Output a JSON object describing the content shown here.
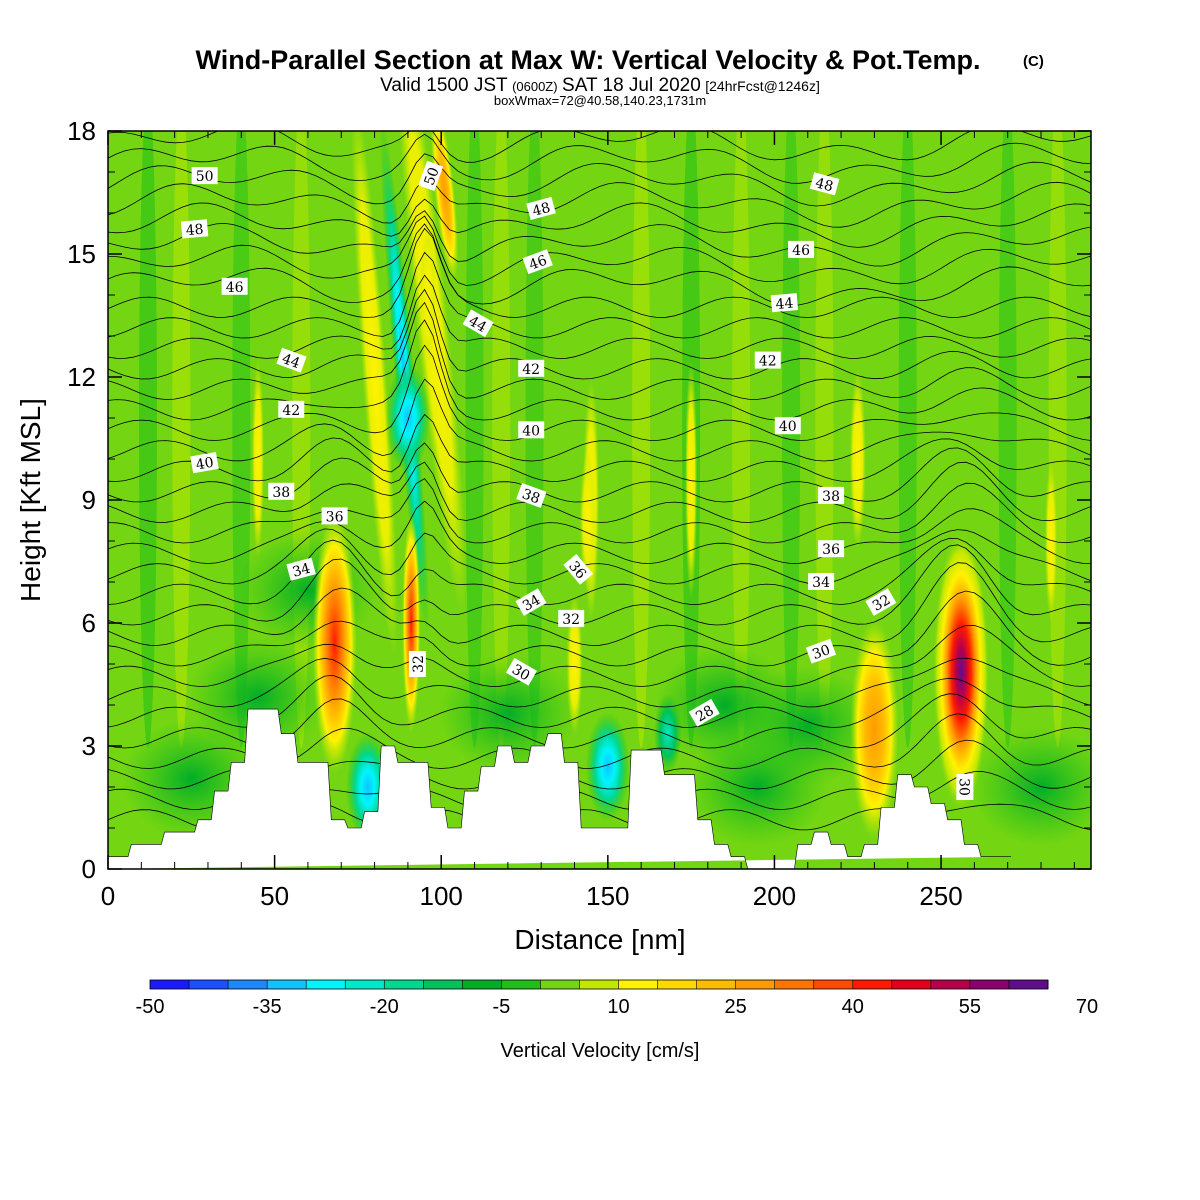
{
  "chart_data": {
    "type": "heatmap",
    "title": "Wind-Parallel Section at Max W: Vertical Velocity & Pot.Temp.",
    "title_mark": "(C)",
    "subtitle_a": "Valid 1500 JST",
    "subtitle_b": "(0600Z)",
    "subtitle_c": "SAT 18 Jul 2020",
    "subtitle_d": "[24hrFcst@1246z]",
    "subtitle2": "boxWmax=72@40.58,140.23,1731m",
    "xlabel": "Distance [nm]",
    "ylabel": "Height [Kft MSL]",
    "xlim": [
      0,
      295
    ],
    "ylim": [
      0,
      18
    ],
    "x_ticks": [
      "0",
      "50",
      "100",
      "150",
      "200",
      "250"
    ],
    "y_ticks": [
      "0",
      "3",
      "6",
      "9",
      "12",
      "15",
      "18"
    ],
    "colorbar": {
      "label": "Vertical Velocity [cm/s]",
      "ticks": [
        "-50",
        "-35",
        "-20",
        "-5",
        "10",
        "25",
        "40",
        "55",
        "70"
      ],
      "colors": [
        "#1a1aff",
        "#1c4fff",
        "#1c88ff",
        "#10c2ff",
        "#00f5ff",
        "#00e8c9",
        "#00d890",
        "#00c25a",
        "#00ad28",
        "#1fbf18",
        "#74d612",
        "#c2e800",
        "#fff200",
        "#ffd800",
        "#ffbb00",
        "#ff9a00",
        "#ff7500",
        "#ff4a00",
        "#ff1a00",
        "#e3001a",
        "#b8004a",
        "#8c006e",
        "#5e0d8c"
      ]
    },
    "contour_labels": [
      "50",
      "48",
      "46",
      "44",
      "42",
      "40",
      "38",
      "36",
      "34",
      "32",
      "30",
      "28"
    ],
    "terrain": {
      "x": [
        0,
        6,
        7,
        16,
        17,
        26,
        27,
        31,
        32,
        36,
        37,
        41,
        42,
        51,
        52,
        56,
        57,
        66,
        67,
        71,
        72,
        76,
        77,
        81,
        82,
        86,
        87,
        96,
        97,
        101,
        102,
        106,
        107,
        111,
        112,
        116,
        117,
        121,
        122,
        126,
        127,
        131,
        132,
        136,
        137,
        141,
        142,
        146,
        147,
        156,
        157,
        166,
        167,
        176,
        177,
        181,
        182,
        186,
        187,
        191,
        192,
        196,
        197,
        206,
        207,
        211,
        212,
        216,
        217,
        221,
        222,
        226,
        227,
        231,
        232,
        236,
        237,
        241,
        242,
        246,
        247,
        251,
        252,
        256,
        257,
        261,
        262,
        266,
        267,
        271,
        272,
        295
      ],
      "y": [
        0.3,
        0.3,
        0.6,
        0.6,
        0.9,
        0.9,
        1.2,
        1.2,
        1.9,
        1.9,
        2.6,
        2.6,
        3.9,
        3.9,
        3.3,
        3.3,
        2.6,
        2.6,
        1.2,
        1.2,
        1.0,
        1.0,
        1.4,
        1.4,
        3.0,
        3.0,
        2.6,
        2.6,
        1.5,
        1.5,
        1.0,
        1.0,
        1.9,
        1.9,
        2.5,
        2.5,
        3.0,
        3.0,
        2.6,
        2.6,
        3.0,
        3.0,
        3.3,
        3.3,
        2.6,
        2.6,
        1.0,
        1.0,
        1.0,
        1.0,
        2.9,
        2.9,
        2.3,
        2.3,
        1.2,
        1.2,
        0.6,
        0.6,
        0.3,
        0.3,
        0.0,
        0.0,
        0.0,
        0.0,
        0.6,
        0.6,
        0.9,
        0.9,
        0.6,
        0.6,
        0.3,
        0.3,
        0.6,
        0.6,
        1.5,
        1.5,
        2.3,
        2.3,
        2.0,
        2.0,
        1.6,
        1.6,
        1.2,
        1.2,
        0.6,
        0.6,
        0.3,
        0.3,
        0.3,
        0.3
      ]
    },
    "updrafts": [
      {
        "x": 68,
        "y": 5.5,
        "w_max": 50
      },
      {
        "x": 91,
        "y": 6.0,
        "w_max": 50
      },
      {
        "x": 96,
        "y": 14.0,
        "w_max": 18
      },
      {
        "x": 230,
        "y": 3.4,
        "w_max": 32
      },
      {
        "x": 256,
        "y": 4.8,
        "w_max": 72
      },
      {
        "x": 140,
        "y": 5.0,
        "w_max": 12
      },
      {
        "x": 144,
        "y": 8.5,
        "w_max": 12
      }
    ],
    "downdrafts": [
      {
        "x": 78,
        "y": 2.0,
        "w_min": -28
      },
      {
        "x": 90,
        "y": 11.0,
        "w_min": -25
      },
      {
        "x": 150,
        "y": 2.5,
        "w_min": -20
      },
      {
        "x": 168,
        "y": 3.3,
        "w_min": -14
      }
    ]
  }
}
